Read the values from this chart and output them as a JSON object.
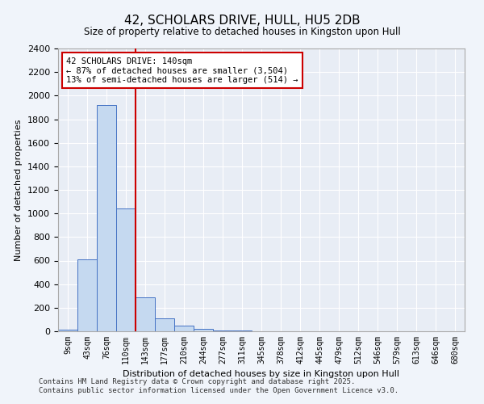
{
  "title": "42, SCHOLARS DRIVE, HULL, HU5 2DB",
  "subtitle": "Size of property relative to detached houses in Kingston upon Hull",
  "xlabel": "Distribution of detached houses by size in Kingston upon Hull",
  "ylabel": "Number of detached properties",
  "categories": [
    "9sqm",
    "43sqm",
    "76sqm",
    "110sqm",
    "143sqm",
    "177sqm",
    "210sqm",
    "244sqm",
    "277sqm",
    "311sqm",
    "345sqm",
    "378sqm",
    "412sqm",
    "445sqm",
    "479sqm",
    "512sqm",
    "546sqm",
    "579sqm",
    "613sqm",
    "646sqm",
    "680sqm"
  ],
  "values": [
    15,
    610,
    1920,
    1040,
    290,
    110,
    45,
    20,
    10,
    5,
    2,
    0,
    0,
    0,
    0,
    0,
    0,
    0,
    0,
    0,
    0
  ],
  "bar_color": "#c5d9f0",
  "bar_edge_color": "#4472c4",
  "vline_index": 3.5,
  "vline_color": "#cc0000",
  "annotation_text": "42 SCHOLARS DRIVE: 140sqm\n← 87% of detached houses are smaller (3,504)\n13% of semi-detached houses are larger (514) →",
  "annotation_box_color": "#ffffff",
  "annotation_box_edge": "#cc0000",
  "ylim": [
    0,
    2400
  ],
  "yticks": [
    0,
    200,
    400,
    600,
    800,
    1000,
    1200,
    1400,
    1600,
    1800,
    2000,
    2200,
    2400
  ],
  "fig_facecolor": "#f0f4fa",
  "ax_facecolor": "#e8edf5",
  "grid_color": "#ffffff",
  "footer_line1": "Contains HM Land Registry data © Crown copyright and database right 2025.",
  "footer_line2": "Contains public sector information licensed under the Open Government Licence v3.0."
}
